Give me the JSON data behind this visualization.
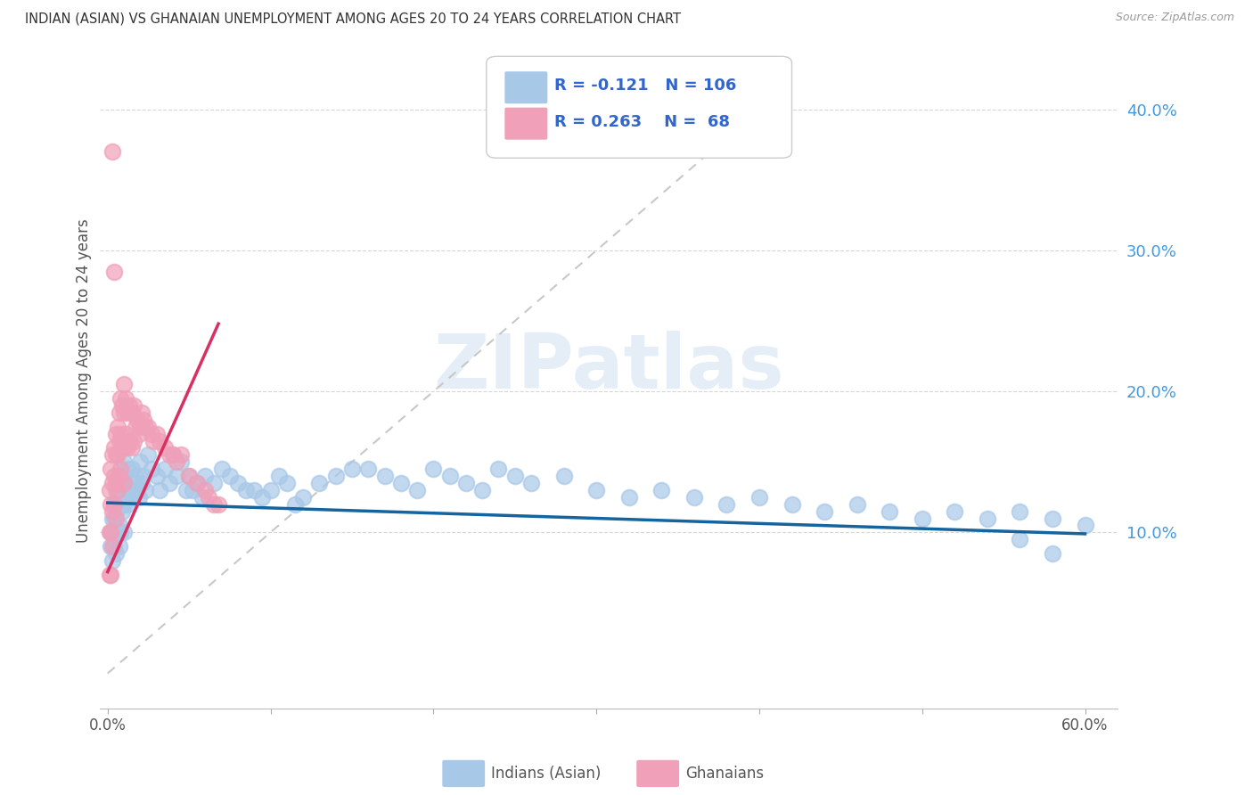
{
  "title": "INDIAN (ASIAN) VS GHANAIAN UNEMPLOYMENT AMONG AGES 20 TO 24 YEARS CORRELATION CHART",
  "source": "Source: ZipAtlas.com",
  "ylabel": "Unemployment Among Ages 20 to 24 years",
  "ytick_labels": [
    "10.0%",
    "20.0%",
    "30.0%",
    "40.0%"
  ],
  "ytick_values": [
    0.1,
    0.2,
    0.3,
    0.4
  ],
  "xtick_labels": [
    "0.0%",
    "",
    "",
    "",
    "",
    "",
    "60.0%"
  ],
  "xtick_values": [
    0.0,
    0.1,
    0.2,
    0.3,
    0.4,
    0.5,
    0.6
  ],
  "xlim": [
    -0.005,
    0.62
  ],
  "ylim": [
    -0.025,
    0.44
  ],
  "indian_R": "-0.121",
  "indian_N": "106",
  "ghanaian_R": "0.263",
  "ghanaian_N": "68",
  "indian_color": "#a8c8e8",
  "ghanaian_color": "#f0a0b8",
  "indian_line_color": "#1464a0",
  "ghanaian_line_color": "#d83060",
  "diagonal_line_color": "#c8c8c8",
  "watermark": "ZIPatlas",
  "legend_label_indian": "Indians (Asian)",
  "legend_label_ghanaian": "Ghanaians",
  "indian_trend_x0": 0.0,
  "indian_trend_y0": 0.121,
  "indian_trend_x1": 0.6,
  "indian_trend_y1": 0.099,
  "ghanaian_trend_x0": 0.0,
  "ghanaian_trend_y0": 0.072,
  "ghanaian_trend_x1": 0.068,
  "ghanaian_trend_y1": 0.248,
  "indian_scatter_x": [
    0.002,
    0.002,
    0.003,
    0.003,
    0.003,
    0.004,
    0.004,
    0.004,
    0.004,
    0.005,
    0.005,
    0.005,
    0.005,
    0.006,
    0.006,
    0.006,
    0.007,
    0.007,
    0.007,
    0.007,
    0.008,
    0.008,
    0.008,
    0.009,
    0.009,
    0.01,
    0.01,
    0.01,
    0.01,
    0.011,
    0.012,
    0.012,
    0.013,
    0.014,
    0.015,
    0.015,
    0.016,
    0.017,
    0.018,
    0.019,
    0.02,
    0.021,
    0.022,
    0.023,
    0.025,
    0.027,
    0.03,
    0.032,
    0.035,
    0.038,
    0.04,
    0.042,
    0.045,
    0.048,
    0.05,
    0.052,
    0.055,
    0.058,
    0.06,
    0.065,
    0.07,
    0.075,
    0.08,
    0.085,
    0.09,
    0.095,
    0.1,
    0.105,
    0.11,
    0.115,
    0.12,
    0.13,
    0.14,
    0.15,
    0.16,
    0.17,
    0.18,
    0.19,
    0.2,
    0.21,
    0.22,
    0.23,
    0.24,
    0.25,
    0.26,
    0.28,
    0.3,
    0.32,
    0.34,
    0.36,
    0.38,
    0.4,
    0.42,
    0.44,
    0.46,
    0.48,
    0.5,
    0.52,
    0.54,
    0.56,
    0.58,
    0.6,
    0.56,
    0.58
  ],
  "indian_scatter_y": [
    0.1,
    0.09,
    0.11,
    0.1,
    0.08,
    0.12,
    0.11,
    0.1,
    0.09,
    0.13,
    0.115,
    0.1,
    0.085,
    0.14,
    0.12,
    0.1,
    0.135,
    0.12,
    0.105,
    0.09,
    0.14,
    0.12,
    0.1,
    0.135,
    0.115,
    0.15,
    0.135,
    0.12,
    0.1,
    0.13,
    0.145,
    0.12,
    0.13,
    0.125,
    0.145,
    0.125,
    0.135,
    0.14,
    0.13,
    0.125,
    0.15,
    0.135,
    0.14,
    0.13,
    0.155,
    0.145,
    0.14,
    0.13,
    0.145,
    0.135,
    0.155,
    0.14,
    0.15,
    0.13,
    0.14,
    0.13,
    0.135,
    0.125,
    0.14,
    0.135,
    0.145,
    0.14,
    0.135,
    0.13,
    0.13,
    0.125,
    0.13,
    0.14,
    0.135,
    0.12,
    0.125,
    0.135,
    0.14,
    0.145,
    0.145,
    0.14,
    0.135,
    0.13,
    0.145,
    0.14,
    0.135,
    0.13,
    0.145,
    0.14,
    0.135,
    0.14,
    0.13,
    0.125,
    0.13,
    0.125,
    0.12,
    0.125,
    0.12,
    0.115,
    0.12,
    0.115,
    0.11,
    0.115,
    0.11,
    0.115,
    0.11,
    0.105,
    0.095,
    0.085
  ],
  "ghanaian_scatter_x": [
    0.001,
    0.001,
    0.001,
    0.002,
    0.002,
    0.002,
    0.002,
    0.003,
    0.003,
    0.003,
    0.003,
    0.004,
    0.004,
    0.004,
    0.005,
    0.005,
    0.005,
    0.005,
    0.006,
    0.006,
    0.006,
    0.007,
    0.007,
    0.007,
    0.008,
    0.008,
    0.008,
    0.009,
    0.009,
    0.01,
    0.01,
    0.01,
    0.01,
    0.011,
    0.011,
    0.012,
    0.012,
    0.013,
    0.013,
    0.015,
    0.015,
    0.016,
    0.016,
    0.017,
    0.018,
    0.019,
    0.02,
    0.021,
    0.022,
    0.023,
    0.025,
    0.027,
    0.028,
    0.03,
    0.032,
    0.035,
    0.038,
    0.04,
    0.042,
    0.045,
    0.05,
    0.055,
    0.06,
    0.062,
    0.065,
    0.068,
    0.003,
    0.004
  ],
  "ghanaian_scatter_y": [
    0.13,
    0.1,
    0.07,
    0.145,
    0.12,
    0.1,
    0.07,
    0.155,
    0.135,
    0.115,
    0.09,
    0.16,
    0.14,
    0.12,
    0.17,
    0.155,
    0.135,
    0.11,
    0.175,
    0.155,
    0.13,
    0.185,
    0.165,
    0.14,
    0.195,
    0.17,
    0.145,
    0.19,
    0.165,
    0.205,
    0.185,
    0.16,
    0.135,
    0.195,
    0.17,
    0.185,
    0.16,
    0.19,
    0.165,
    0.185,
    0.16,
    0.19,
    0.165,
    0.175,
    0.18,
    0.17,
    0.175,
    0.185,
    0.18,
    0.175,
    0.175,
    0.17,
    0.165,
    0.17,
    0.165,
    0.16,
    0.155,
    0.155,
    0.15,
    0.155,
    0.14,
    0.135,
    0.13,
    0.125,
    0.12,
    0.12,
    0.37,
    0.285
  ]
}
